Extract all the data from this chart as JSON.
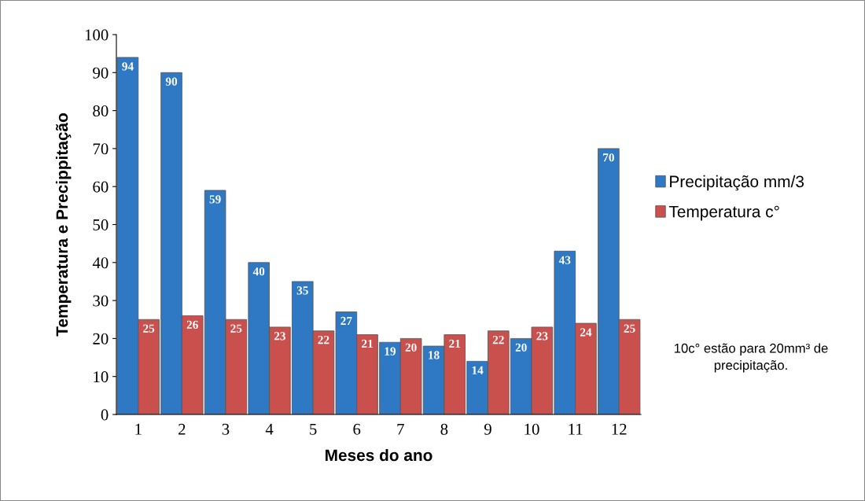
{
  "chart_data": {
    "type": "bar",
    "xlabel": "Meses do ano",
    "ylabel": "Temperatura e Precippitação",
    "categories": [
      "1",
      "2",
      "3",
      "4",
      "5",
      "6",
      "7",
      "8",
      "9",
      "10",
      "11",
      "12"
    ],
    "series": [
      {
        "name": "Precipitação mm/3",
        "color": "#2f78c4",
        "values": [
          94,
          90,
          59,
          40,
          35,
          27,
          19,
          18,
          14,
          20,
          43,
          70
        ]
      },
      {
        "name": "Temperatura c°",
        "color": "#c9504d",
        "values": [
          25,
          26,
          25,
          23,
          22,
          21,
          20,
          21,
          22,
          23,
          24,
          25
        ]
      }
    ],
    "ylim": [
      0,
      100
    ],
    "yticks": [
      0,
      10,
      20,
      30,
      40,
      50,
      60,
      70,
      80,
      90,
      100
    ],
    "data_labels": true,
    "legend": "right",
    "grid": false,
    "annotations": [
      "10c° estão para 20mm³ de precipitação."
    ]
  }
}
